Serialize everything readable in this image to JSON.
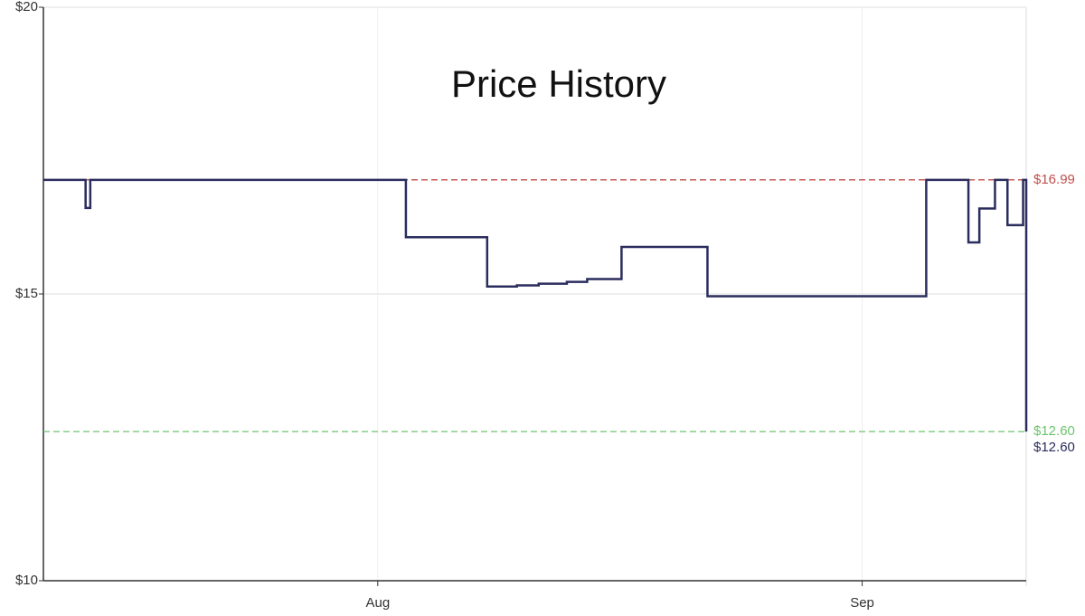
{
  "chart_data": {
    "type": "step",
    "title": "Price History",
    "x": [
      9.6,
      12.3,
      12.6,
      32.8,
      38.0,
      39.9,
      41.3,
      43.1,
      44.4,
      46.6,
      52.1,
      66.1,
      68.8,
      69.5,
      70.5,
      71.3,
      72.3,
      72.5
    ],
    "series": [
      {
        "color": "#2b2d5e",
        "values": [
          16.99,
          16.5,
          16.99,
          15.99,
          15.13,
          15.15,
          15.18,
          15.21,
          15.26,
          15.82,
          14.96,
          16.99,
          15.9,
          16.49,
          16.99,
          16.2,
          16.99,
          12.6
        ]
      }
    ],
    "xlim": [
      9.6,
      72.5
    ],
    "xticks": [
      {
        "value": 31,
        "label": "Aug"
      },
      {
        "value": 62,
        "label": "Sep"
      }
    ],
    "ylim": [
      10,
      20
    ],
    "yticks": [
      {
        "value": 10,
        "label": "$10"
      },
      {
        "value": 15,
        "label": "$15"
      },
      {
        "value": 20,
        "label": "$20"
      }
    ],
    "grid": true,
    "reference_lines": [
      {
        "value": 16.99,
        "label": "$16.99",
        "color": "#c0504d"
      },
      {
        "value": 12.6,
        "label": "$12.60",
        "color": "#6cc46c"
      }
    ],
    "current_price": {
      "value": 12.6,
      "label": "$12.60",
      "color": "#2b2d5e"
    }
  }
}
